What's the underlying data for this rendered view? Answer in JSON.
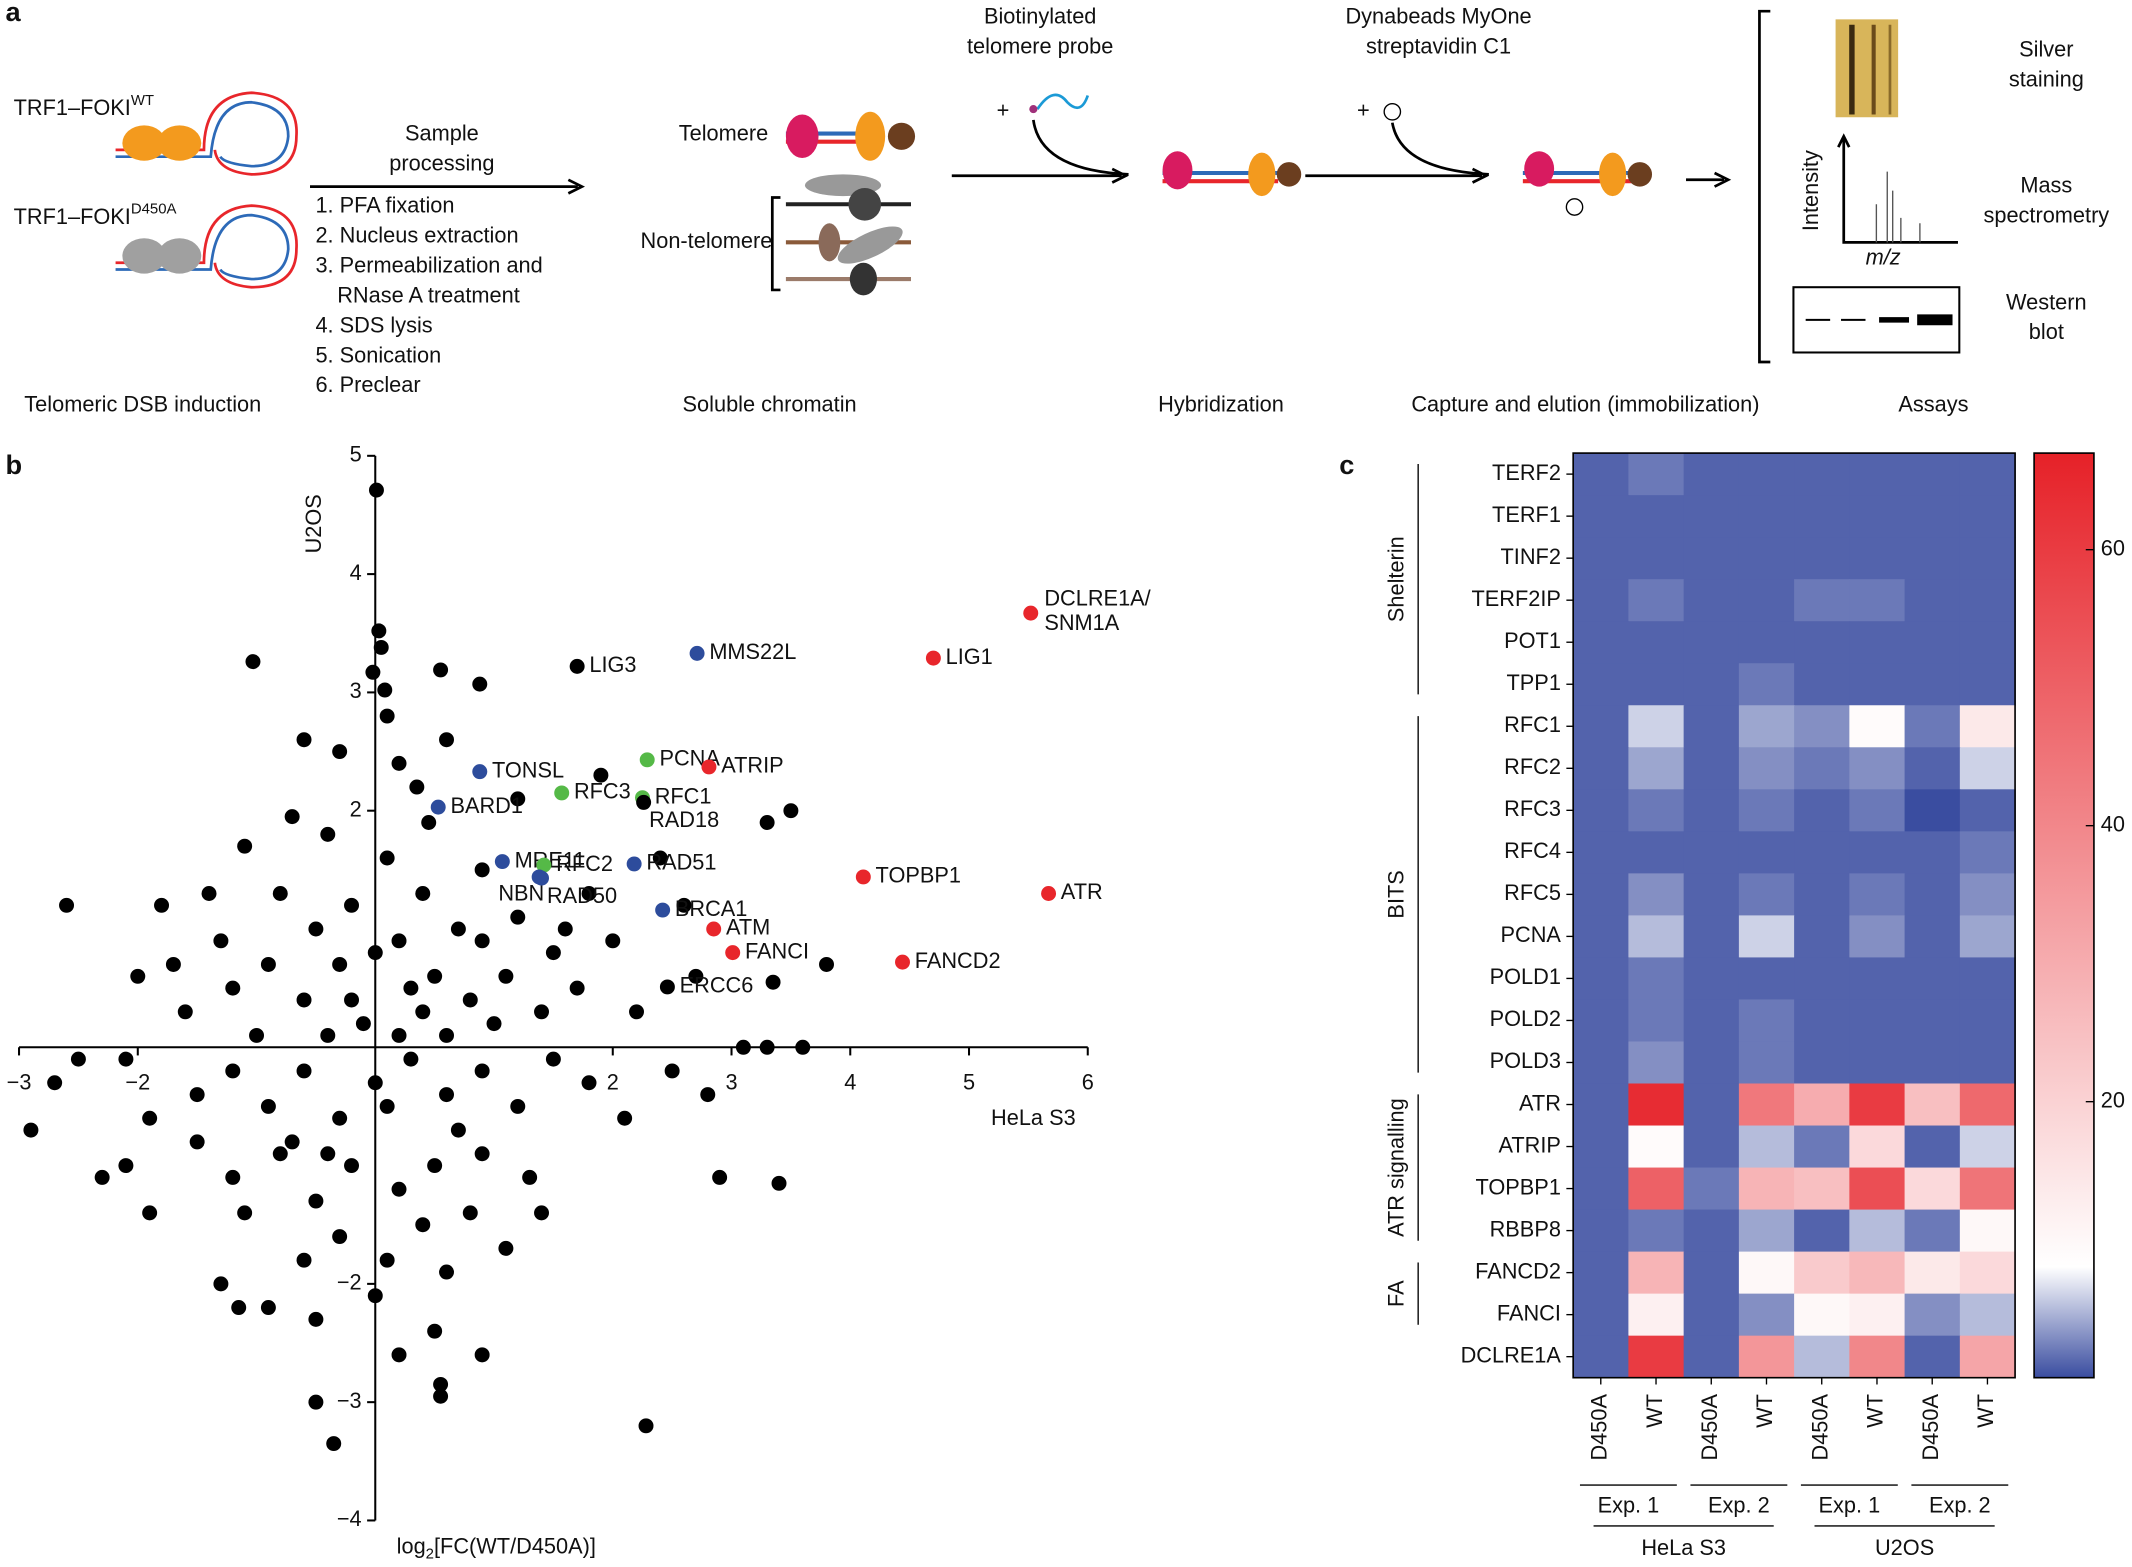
{
  "panel_labels": [
    "a",
    "b",
    "c"
  ],
  "panel_a": {
    "constructs": [
      {
        "name": "TRF1–FOKI",
        "sup": "WT"
      },
      {
        "name": "TRF1–FOKI",
        "sup": "D450A"
      }
    ],
    "processing_title": [
      "Sample",
      "processing"
    ],
    "processing_steps": [
      "1. PFA fixation",
      "2. Nucleus extraction",
      "3. Permeabilization and",
      "RNase A treatment",
      "4. SDS lysis",
      "5. Sonication",
      "6. Preclear"
    ],
    "telomere": "Telomere",
    "non_telomere": "Non-telomere",
    "probe": [
      "Biotinylated",
      "telomere probe"
    ],
    "beads": [
      "Dynabeads MyOne",
      "streptavidin C1"
    ],
    "assays": {
      "silver": [
        "Silver",
        "staining"
      ],
      "intensity": "Intensity",
      "mz": "m/z",
      "mass": [
        "Mass",
        "spectrometry"
      ],
      "western": [
        "Western",
        "blot"
      ]
    },
    "stages": [
      "Telomeric DSB induction",
      "Soluble chromatin",
      "Hybridization",
      "Capture and elution (immobilization)",
      "Assays"
    ]
  },
  "chart_data": [
    {
      "type": "scatter",
      "x_label": [
        "log",
        "2",
        "[FC(WT/D450A)]"
      ],
      "x_sublabel": "HeLa S3",
      "y_label": "U2OS",
      "xlim": [
        -3,
        6
      ],
      "ylim": [
        -4,
        5
      ],
      "xticks": [
        {
          "value": -3,
          "label": "−3"
        },
        {
          "value": -2,
          "label": "−2"
        },
        2,
        3,
        4,
        5,
        6
      ],
      "yticks": [
        5,
        4,
        3,
        2,
        {
          "value": -2,
          "label": "−2"
        },
        {
          "value": -3,
          "label": "−3"
        },
        {
          "value": -4,
          "label": "−4"
        }
      ],
      "series": [
        {
          "color": "#000000",
          "x": [
            0.01,
            -1.03,
            0.03,
            0.05,
            -0.02,
            0.08,
            0.55,
            0.88,
            -0.6,
            -0.3,
            0.1,
            0.2,
            0.6,
            0.35,
            -0.7,
            -0.4,
            -1.1,
            0.45,
            1.2,
            1.9,
            3.3,
            3.5,
            3.8,
            3.35,
            2.4,
            1.8,
            2.0,
            2.7,
            2.2,
            1.5,
            1.2,
            0.9,
            0.7,
            0.4,
            0.1,
            -0.2,
            -0.5,
            -0.8,
            -1.3,
            -1.8,
            -2.0,
            -1.6,
            -1.2,
            -0.9,
            -0.6,
            -0.3,
            0.2,
            0.5,
            0.8,
            1.1,
            1.4,
            1.7,
            -2.5,
            -2.7,
            -2.1,
            -1.9,
            -2.1,
            -1.5,
            -1.2,
            -0.9,
            -0.6,
            -0.3,
            0.0,
            0.3,
            0.6,
            0.9,
            1.2,
            1.5,
            1.8,
            2.1,
            2.5,
            2.8,
            3.1,
            3.3,
            3.6,
            2.9,
            3.4,
            1.3,
            0.9,
            0.5,
            0.2,
            -0.2,
            -0.5,
            -0.8,
            -1.2,
            -1.5,
            -1.1,
            -1.9,
            -2.3,
            0.4,
            0.8,
            1.1,
            0.6,
            0.1,
            -0.3,
            -0.6,
            -1.3,
            -0.9,
            -0.5,
            0.0,
            0.5,
            0.9,
            0.55,
            0.55,
            -1.15,
            -0.5,
            -0.35,
            2.28,
            0.2,
            1.4,
            -0.1,
            0.2,
            0.4,
            -0.2,
            0.6,
            0.1,
            -0.4,
            0.3,
            0.7,
            -0.7,
            1.0,
            -1.0,
            0.0,
            0.9,
            -0.4,
            1.6,
            2.6,
            -1.4,
            -1.7,
            -2.6,
            -2.9
          ],
          "values": [
            4.71,
            3.26,
            3.52,
            3.38,
            3.17,
            3.02,
            3.19,
            3.07,
            2.6,
            2.5,
            2.8,
            2.4,
            2.6,
            2.2,
            1.95,
            1.8,
            1.7,
            1.9,
            2.1,
            2.3,
            1.9,
            2.0,
            0.7,
            0.55,
            1.6,
            1.3,
            0.9,
            0.6,
            0.3,
            0.8,
            1.1,
            1.5,
            1.0,
            1.3,
            1.6,
            1.2,
            1.0,
            1.3,
            0.9,
            1.2,
            0.6,
            0.3,
            0.5,
            0.7,
            0.4,
            0.7,
            0.9,
            0.6,
            0.4,
            0.6,
            0.3,
            0.5,
            -0.1,
            -0.3,
            -0.1,
            -0.6,
            -1.0,
            -0.4,
            -0.2,
            -0.5,
            -0.2,
            -0.6,
            -0.3,
            -0.1,
            -0.4,
            -0.2,
            -0.5,
            -0.1,
            -0.3,
            -0.6,
            -0.2,
            -0.4,
            0.0,
            0.0,
            0.0,
            -1.1,
            -1.15,
            -1.1,
            -0.9,
            -1.0,
            -1.2,
            -1.0,
            -1.3,
            -0.9,
            -1.1,
            -0.8,
            -1.4,
            -1.4,
            -1.1,
            -1.5,
            -1.4,
            -1.7,
            -1.9,
            -1.8,
            -1.6,
            -1.8,
            -2.0,
            -2.2,
            -2.3,
            -2.1,
            -2.4,
            -2.6,
            -2.85,
            -2.95,
            -2.2,
            -3.0,
            -3.35,
            -3.2,
            -2.6,
            -1.4,
            0.2,
            0.1,
            0.3,
            0.4,
            0.1,
            -0.5,
            0.1,
            0.5,
            -0.7,
            -0.8,
            0.2,
            0.1,
            0.8,
            0.9,
            -0.9,
            1.0,
            1.2,
            1.3,
            0.7,
            1.2,
            -0.7
          ]
        }
      ],
      "labeled_points": [
        {
          "name": "DCLRE1A/",
          "name2": "SNM1A",
          "color": "#e8262b",
          "x": 5.52,
          "y": 3.67
        },
        {
          "name": "LIG1",
          "color": "#e8262b",
          "x": 4.7,
          "y": 3.29
        },
        {
          "name": "MMS22L",
          "color": "#2d4c9c",
          "x": 2.71,
          "y": 3.33
        },
        {
          "name": "LIG3",
          "color": "#000000",
          "x": 1.7,
          "y": 3.22
        },
        {
          "name": "TONSL",
          "color": "#2d4c9c",
          "x": 0.88,
          "y": 2.33
        },
        {
          "name": "PCNA",
          "color": "#55b947",
          "x": 2.29,
          "y": 2.43
        },
        {
          "name": "ATRIP",
          "color": "#e8262b",
          "x": 2.81,
          "y": 2.37
        },
        {
          "name": "RFC1",
          "color": "#55b947",
          "x": 2.25,
          "y": 2.11
        },
        {
          "name": "RAD18",
          "color": "#000000",
          "x": 2.26,
          "y": 2.07
        },
        {
          "name": "RFC3",
          "color": "#55b947",
          "x": 1.57,
          "y": 2.15
        },
        {
          "name": "BARD1",
          "color": "#2d4c9c",
          "x": 0.53,
          "y": 2.03
        },
        {
          "name": "MRE11",
          "color": "#2d4c9c",
          "x": 1.07,
          "y": 1.57
        },
        {
          "name": "RFC2",
          "color": "#55b947",
          "x": 1.42,
          "y": 1.54
        },
        {
          "name": "NBN",
          "color": "#2d4c9c",
          "x": 1.38,
          "y": 1.44
        },
        {
          "name": "RAD50",
          "color": "#2d4c9c",
          "x": 1.4,
          "y": 1.43
        },
        {
          "name": "RAD51",
          "color": "#2d4c9c",
          "x": 2.18,
          "y": 1.55
        },
        {
          "name": "TOPBP1",
          "color": "#e8262b",
          "x": 4.11,
          "y": 1.44
        },
        {
          "name": "ATR",
          "color": "#e8262b",
          "x": 5.67,
          "y": 1.3
        },
        {
          "name": "BRCA1",
          "color": "#2d4c9c",
          "x": 2.42,
          "y": 1.16
        },
        {
          "name": "ATM",
          "color": "#e8262b",
          "x": 2.85,
          "y": 1.0
        },
        {
          "name": "FANCI",
          "color": "#e8262b",
          "x": 3.01,
          "y": 0.8
        },
        {
          "name": "FANCD2",
          "color": "#e8262b",
          "x": 4.44,
          "y": 0.72
        },
        {
          "name": "ERCC6",
          "color": "#000000",
          "x": 2.46,
          "y": 0.51
        }
      ]
    },
    {
      "type": "heatmap",
      "rows": [
        "TERF2",
        "TERF1",
        "TINF2",
        "TERF2IP",
        "POT1",
        "TPP1",
        "RFC1",
        "RFC2",
        "RFC3",
        "RFC4",
        "RFC5",
        "PCNA",
        "POLD1",
        "POLD2",
        "POLD3",
        "ATR",
        "ATRIP",
        "TOPBP1",
        "RBBP8",
        "FANCD2",
        "FANCI",
        "DCLRE1A"
      ],
      "columns": [
        "D450A",
        "WT",
        "D450A",
        "WT",
        "D450A",
        "WT",
        "D450A",
        "WT"
      ],
      "experiments": [
        {
          "label": "Exp. 1",
          "span": [
            0,
            1
          ]
        },
        {
          "label": "Exp. 2",
          "span": [
            2,
            3
          ]
        },
        {
          "label": "Exp. 1",
          "span": [
            4,
            5
          ]
        },
        {
          "label": "Exp. 2",
          "span": [
            6,
            7
          ]
        }
      ],
      "cell_lines": [
        {
          "label": "HeLa  S3",
          "span": [
            0,
            3
          ]
        },
        {
          "label": "U2OS",
          "span": [
            4,
            7
          ]
        }
      ],
      "row_groups": [
        {
          "label": "Shelterin",
          "span": [
            0,
            5
          ]
        },
        {
          "label": "BITS",
          "span": [
            6,
            14
          ]
        },
        {
          "label": "ATR signalling",
          "span": [
            15,
            18
          ]
        },
        {
          "label": "FA",
          "span": [
            19,
            20
          ]
        }
      ],
      "values": [
        [
          1,
          2,
          1,
          1,
          1,
          1,
          1,
          1
        ],
        [
          1,
          1,
          1,
          1,
          1,
          1,
          1,
          1
        ],
        [
          1,
          1,
          1,
          1,
          1,
          1,
          1,
          1
        ],
        [
          1,
          2,
          1,
          1,
          2,
          2,
          1,
          1
        ],
        [
          1,
          1,
          1,
          1,
          1,
          1,
          1,
          1
        ],
        [
          1,
          1,
          1,
          2,
          1,
          1,
          1,
          1
        ],
        [
          1,
          6,
          1,
          4,
          3,
          9,
          2,
          14
        ],
        [
          1,
          4,
          1,
          3,
          2,
          3,
          1,
          6
        ],
        [
          1,
          2,
          1,
          2,
          1,
          2,
          0,
          1
        ],
        [
          1,
          1,
          1,
          1,
          1,
          1,
          1,
          2
        ],
        [
          1,
          3,
          1,
          2,
          1,
          2,
          1,
          3
        ],
        [
          1,
          5,
          1,
          6,
          1,
          3,
          1,
          4
        ],
        [
          1,
          2,
          1,
          1,
          1,
          1,
          1,
          1
        ],
        [
          1,
          2,
          1,
          2,
          1,
          1,
          1,
          1
        ],
        [
          1,
          3,
          1,
          2,
          1,
          1,
          1,
          1
        ],
        [
          1,
          64,
          1,
          44,
          30,
          60,
          25,
          48
        ],
        [
          1,
          9,
          1,
          5,
          2,
          18,
          1,
          6
        ],
        [
          1,
          50,
          2,
          28,
          25,
          55,
          18,
          45
        ],
        [
          1,
          2,
          1,
          4,
          1,
          5,
          2,
          10
        ],
        [
          1,
          28,
          1,
          10,
          22,
          27,
          14,
          18
        ],
        [
          1,
          12,
          1,
          3,
          10,
          12,
          3,
          5
        ],
        [
          1,
          60,
          1,
          36,
          5,
          40,
          1,
          32
        ]
      ],
      "colormap": [
        "#3a4da0",
        "#ffffff",
        "#e62128"
      ],
      "clim": [
        0,
        67
      ],
      "cticks": [
        20,
        40,
        60
      ]
    }
  ]
}
